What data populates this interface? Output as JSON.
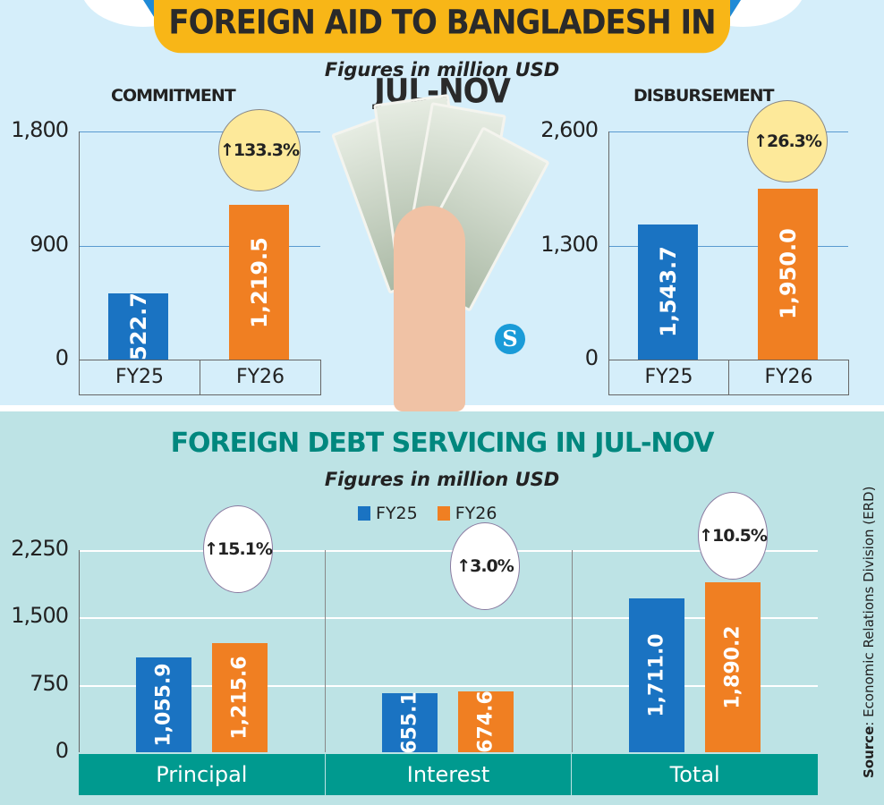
{
  "header": {
    "title": "FOREIGN AID TO BANGLADESH IN JUL-NOV",
    "subtitle": "Figures in million USD"
  },
  "debt": {
    "title": "FOREIGN DEBT SERVICING IN JUL-NOV",
    "subtitle": "Figures in million USD"
  },
  "source": {
    "label": "Source",
    "text": ": Economic Relations Division (ERD)"
  },
  "logo": "S",
  "colors": {
    "fy25": "#1a73c2",
    "fy26": "#f07f22",
    "teal": "#009a8f",
    "yellow": "#f8b617"
  },
  "chart_data": [
    {
      "type": "bar",
      "title": "COMMITMENT",
      "categories": [
        "FY25",
        "FY26"
      ],
      "values": [
        522.7,
        1219.5
      ],
      "labels": [
        "522.7",
        "1,219.5"
      ],
      "ylim": [
        0,
        1800
      ],
      "yticks": [
        "0",
        "900",
        "1,800"
      ],
      "yticks_values": [
        0,
        900,
        1800
      ],
      "annotation": "↑133.3%"
    },
    {
      "type": "bar",
      "title": "DISBURSEMENT",
      "categories": [
        "FY25",
        "FY26"
      ],
      "values": [
        1543.7,
        1950.0
      ],
      "labels": [
        "1,543.7",
        "1,950.0"
      ],
      "ylim": [
        0,
        2600
      ],
      "yticks": [
        "0",
        "1,300",
        "2,600"
      ],
      "yticks_values": [
        0,
        1300,
        2600
      ],
      "annotation": "↑26.3%"
    },
    {
      "type": "bar",
      "title": "FOREIGN DEBT SERVICING IN JUL-NOV",
      "categories": [
        "Principal",
        "Interest",
        "Total"
      ],
      "series": [
        {
          "name": "FY25",
          "values": [
            1055.9,
            655.1,
            1711.0
          ],
          "labels": [
            "1,055.9",
            "655.1",
            "1,711.0"
          ]
        },
        {
          "name": "FY26",
          "values": [
            1215.6,
            674.6,
            1890.2
          ],
          "labels": [
            "1,215.6",
            "674.6",
            "1,890.2"
          ]
        }
      ],
      "ylim": [
        0,
        2250
      ],
      "yticks": [
        "0",
        "750",
        "1,500",
        "2,250"
      ],
      "yticks_values": [
        0,
        750,
        1500,
        2250
      ],
      "annotations": [
        "↑15.1%",
        "↑3.0%",
        "↑10.5%"
      ],
      "legend": "top-center"
    }
  ]
}
